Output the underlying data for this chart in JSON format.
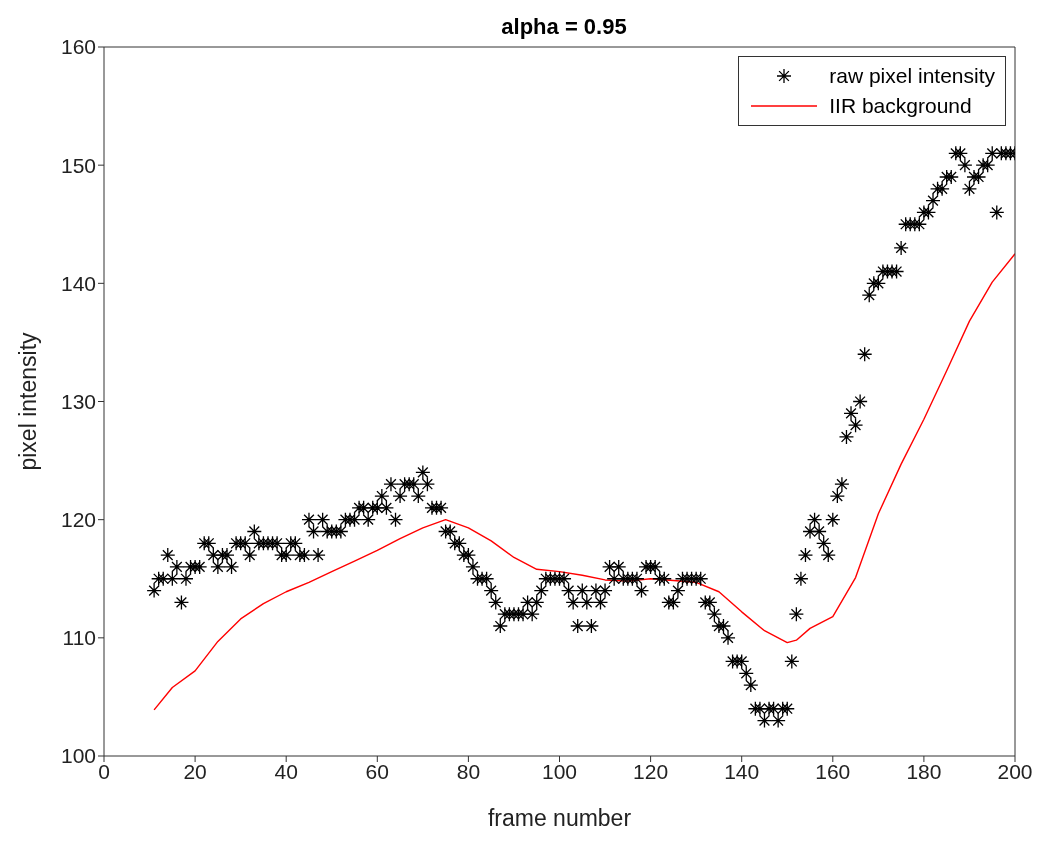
{
  "chart_data": {
    "type": "scatter",
    "title": "alpha = 0.95",
    "xlabel": "frame number",
    "ylabel": "pixel intensity",
    "xlim": [
      0,
      200
    ],
    "xticks": [
      0,
      20,
      40,
      60,
      80,
      100,
      120,
      140,
      160,
      180,
      200
    ],
    "ylim": [
      100,
      160
    ],
    "yticks": [
      100,
      110,
      120,
      130,
      140,
      150,
      160
    ],
    "grid": false,
    "legend": "top right",
    "series": [
      {
        "name": "raw pixel intensity",
        "marker": "cross",
        "color": "#000000",
        "x": [
          11,
          12,
          13,
          14,
          15,
          16,
          17,
          18,
          19,
          20,
          21,
          22,
          23,
          24,
          25,
          26,
          27,
          28,
          29,
          30,
          31,
          32,
          33,
          34,
          35,
          36,
          37,
          38,
          39,
          40,
          41,
          42,
          43,
          44,
          45,
          46,
          47,
          48,
          49,
          50,
          51,
          52,
          53,
          54,
          55,
          56,
          57,
          58,
          59,
          60,
          61,
          62,
          63,
          64,
          65,
          66,
          67,
          68,
          69,
          70,
          71,
          72,
          73,
          74,
          75,
          76,
          77,
          78,
          79,
          80,
          81,
          82,
          83,
          84,
          85,
          86,
          87,
          88,
          89,
          90,
          91,
          92,
          93,
          94,
          95,
          96,
          97,
          98,
          99,
          100,
          101,
          102,
          103,
          104,
          105,
          106,
          107,
          108,
          109,
          110,
          111,
          112,
          113,
          114,
          115,
          116,
          117,
          118,
          119,
          120,
          121,
          122,
          123,
          124,
          125,
          126,
          127,
          128,
          129,
          130,
          131,
          132,
          133,
          134,
          135,
          136,
          137,
          138,
          139,
          140,
          141,
          142,
          143,
          144,
          145,
          146,
          147,
          148,
          149,
          150,
          151,
          152,
          153,
          154,
          155,
          156,
          157,
          158,
          159,
          160,
          161,
          162,
          163,
          164,
          165,
          166,
          167,
          168,
          169,
          170,
          171,
          172,
          173,
          174,
          175,
          176,
          177,
          178,
          179,
          180,
          181,
          182,
          183,
          184,
          185,
          186,
          187,
          188,
          189,
          190,
          191,
          192,
          193,
          194,
          195,
          196,
          197,
          198,
          199,
          200
        ],
        "values": [
          114,
          115,
          115,
          117,
          115,
          116,
          113,
          115,
          116,
          116,
          116,
          118,
          118,
          117,
          116,
          117,
          117,
          116,
          118,
          118,
          118,
          117,
          119,
          118,
          118,
          118,
          118,
          118,
          117,
          117,
          118,
          118,
          117,
          117,
          120,
          119,
          117,
          120,
          119,
          119,
          119,
          119,
          120,
          120,
          120,
          121,
          121,
          120,
          121,
          121,
          122,
          121,
          123,
          120,
          122,
          123,
          123,
          123,
          122,
          124,
          123,
          121,
          121,
          121,
          119,
          119,
          118,
          118,
          117,
          117,
          116,
          115,
          115,
          115,
          114,
          113,
          111,
          112,
          112,
          112,
          112,
          112,
          113,
          112,
          113,
          114,
          115,
          115,
          115,
          115,
          115,
          114,
          113,
          111,
          114,
          113,
          111,
          114,
          113,
          114,
          116,
          115,
          116,
          115,
          115,
          115,
          115,
          114,
          116,
          116,
          116,
          115,
          115,
          113,
          113,
          114,
          115,
          115,
          115,
          115,
          115,
          113,
          113,
          112,
          111,
          111,
          110,
          108,
          108,
          108,
          107,
          106,
          104,
          104,
          103,
          104,
          104,
          103,
          104,
          104,
          108,
          112,
          115,
          117,
          119,
          120,
          119,
          118,
          117,
          120,
          122,
          123,
          127,
          129,
          128,
          130,
          134,
          139,
          140,
          140,
          141,
          141,
          141,
          141,
          143,
          145,
          145,
          145,
          145,
          146,
          146,
          147,
          148,
          148,
          149,
          149,
          151,
          151,
          150,
          148,
          149,
          149,
          150,
          150,
          151,
          146,
          151,
          151,
          151,
          151
        ]
      },
      {
        "name": "IIR background",
        "type": "line",
        "marker": "none",
        "line_style": "solid",
        "color": "#ff0000",
        "x": [
          11,
          15,
          20,
          25,
          30,
          35,
          40,
          45,
          50,
          55,
          60,
          65,
          70,
          75,
          80,
          85,
          90,
          95,
          100,
          105,
          110,
          115,
          120,
          130,
          135,
          140,
          145,
          150,
          152,
          155,
          160,
          165,
          170,
          175,
          180,
          185,
          190,
          195,
          200
        ],
        "values": [
          103.9,
          105.8,
          107.2,
          109.7,
          111.6,
          112.9,
          113.9,
          114.7,
          115.6,
          116.5,
          117.4,
          118.4,
          119.3,
          120,
          119.3,
          118.2,
          116.8,
          115.8,
          115.6,
          115.3,
          114.9,
          114.8,
          115,
          114.7,
          113.9,
          112.2,
          110.6,
          109.6,
          109.8,
          110.8,
          111.8,
          115.1,
          120.5,
          124.7,
          128.5,
          132.6,
          136.8,
          140.1,
          142.5
        ]
      }
    ]
  }
}
